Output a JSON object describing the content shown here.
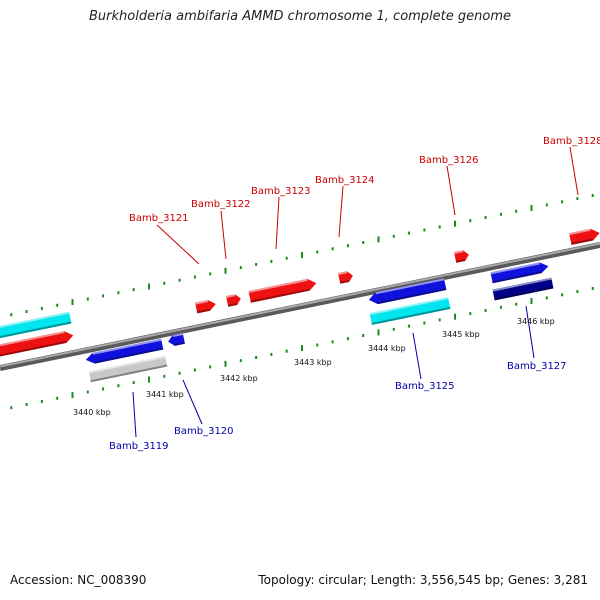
{
  "title": "Burkholderia ambifaria AMMD chromosome 1, complete genome",
  "footer": {
    "accession": "Accession: NC_008390",
    "summary": "Topology: circular; Length: 3,556,545 bp; Genes: 3,281"
  },
  "colors": {
    "top_strand_label": "#cc0000",
    "bottom_strand_label": "#0000aa",
    "tick": "#1a8a1a",
    "backbone": "#888888"
  },
  "scale_labels": [
    "3440 kbp",
    "3441 kbp",
    "3442 kbp",
    "3443 kbp",
    "3444 kbp",
    "3445 kbp",
    "3446 kbp"
  ],
  "genes": {
    "top": [
      "Bamb_3121",
      "Bamb_3122",
      "Bamb_3123",
      "Bamb_3124",
      "Bamb_3126",
      "Bamb_3128"
    ],
    "bottom": [
      "Bamb_3119",
      "Bamb_3120",
      "Bamb_3125",
      "Bamb_3127"
    ]
  }
}
